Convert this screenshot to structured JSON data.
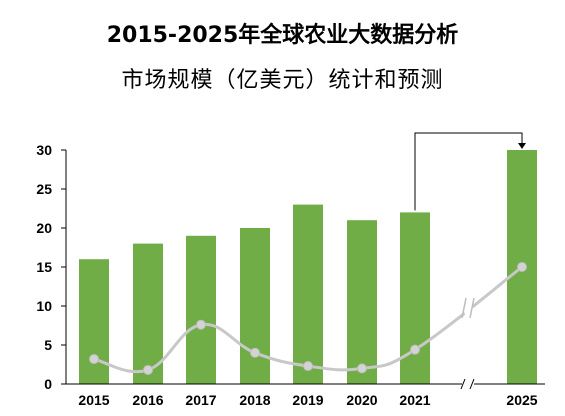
{
  "title_line1": "2015-2025年全球农业大数据分析",
  "title_line2": "市场规模（亿美元）统计和预测",
  "chart_data": {
    "type": "bar",
    "categories": [
      "2015",
      "2016",
      "2017",
      "2018",
      "2019",
      "2020",
      "2021",
      "2025"
    ],
    "series": [
      {
        "values": [
          16,
          18,
          19,
          20,
          23,
          21,
          22,
          30
        ]
      },
      {
        "type": "line",
        "values": [
          3.2,
          1.8,
          7.6,
          4.0,
          2.3,
          2.0,
          4.4,
          15.0
        ]
      }
    ],
    "yticks": [
      0,
      5,
      10,
      15,
      20,
      25,
      30
    ],
    "ylim": [
      0,
      30
    ],
    "axis_break": "between 2021 and 2025",
    "grid": false,
    "legend": "none",
    "colors": {
      "bar": "#70ad47",
      "line": "#c8c8c8",
      "marker": "#d3d3d3",
      "axis": "#000000"
    }
  }
}
